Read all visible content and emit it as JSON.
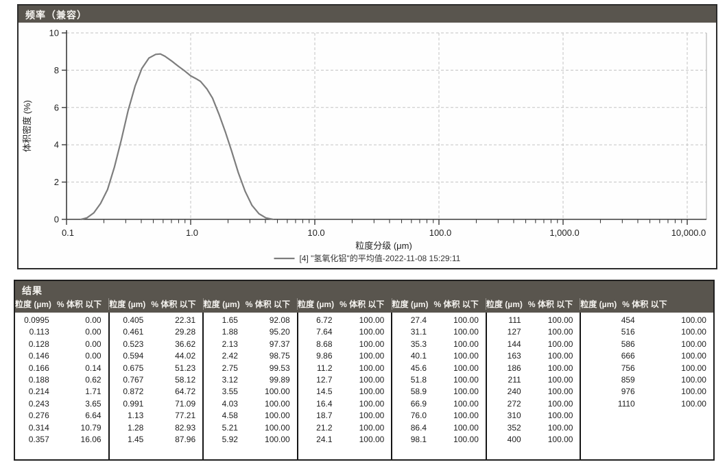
{
  "chart_panel": {
    "title": "频率（兼容）",
    "header_bg": "#59554e",
    "y_axis_label": "体积密度 (%)",
    "x_axis_label": "粒度分级 (μm)",
    "legend_label": "[4] \"氢氧化铝\"的平均值-2022-11-08 15:29:11",
    "curve_color": "#7d7d7d",
    "grid_color": "#c3c3c3",
    "axis_color": "#3a3a3a"
  },
  "chart_data": {
    "type": "line",
    "title": "频率（兼容）",
    "xlabel": "粒度分级 (μm)",
    "ylabel": "体积密度 (%)",
    "x_scale": "log",
    "xlim": [
      0.1,
      10000
    ],
    "ylim": [
      0,
      10
    ],
    "y_ticks": [
      0,
      2,
      4,
      6,
      8,
      10
    ],
    "x_major_ticks": [
      0.1,
      1,
      10,
      100,
      1000,
      10000
    ],
    "x_tick_labels": [
      "0.1",
      "1.0",
      "10.0",
      "100.0",
      "1,000.0",
      "10,000.0"
    ],
    "grid": "dashed",
    "legend_position": "bottom",
    "series": [
      {
        "name": "[4] \"氢氧化铝\"的平均值-2022-11-08 15:29:11",
        "x": [
          0.131,
          0.146,
          0.166,
          0.188,
          0.214,
          0.243,
          0.276,
          0.314,
          0.357,
          0.405,
          0.461,
          0.523,
          0.57,
          0.62,
          0.7,
          0.8,
          0.9,
          1.0,
          1.1,
          1.2,
          1.35,
          1.5,
          1.7,
          1.9,
          2.13,
          2.42,
          2.75,
          3.12,
          3.55,
          4.03,
          4.6
        ],
        "y": [
          0,
          0.08,
          0.35,
          0.85,
          1.6,
          2.8,
          4.25,
          5.85,
          7.15,
          8.1,
          8.65,
          8.85,
          8.87,
          8.75,
          8.5,
          8.2,
          7.95,
          7.7,
          7.55,
          7.4,
          7.0,
          6.5,
          5.6,
          4.7,
          3.7,
          2.5,
          1.5,
          0.75,
          0.3,
          0.08,
          0
        ]
      }
    ]
  },
  "results_table": {
    "title": "结果",
    "size_header": "粒度 (µm)",
    "pct_header": "% 体积 以下",
    "groups": [
      [
        [
          "0.0995",
          "0.00"
        ],
        [
          "0.113",
          "0.00"
        ],
        [
          "0.128",
          "0.00"
        ],
        [
          "0.146",
          "0.00"
        ],
        [
          "0.166",
          "0.14"
        ],
        [
          "0.188",
          "0.62"
        ],
        [
          "0.214",
          "1.71"
        ],
        [
          "0.243",
          "3.65"
        ],
        [
          "0.276",
          "6.64"
        ],
        [
          "0.314",
          "10.79"
        ],
        [
          "0.357",
          "16.06"
        ]
      ],
      [
        [
          "0.405",
          "22.31"
        ],
        [
          "0.461",
          "29.28"
        ],
        [
          "0.523",
          "36.62"
        ],
        [
          "0.594",
          "44.02"
        ],
        [
          "0.675",
          "51.23"
        ],
        [
          "0.767",
          "58.12"
        ],
        [
          "0.872",
          "64.72"
        ],
        [
          "0.991",
          "71.09"
        ],
        [
          "1.13",
          "77.21"
        ],
        [
          "1.28",
          "82.93"
        ],
        [
          "1.45",
          "87.96"
        ]
      ],
      [
        [
          "1.65",
          "92.08"
        ],
        [
          "1.88",
          "95.20"
        ],
        [
          "2.13",
          "97.37"
        ],
        [
          "2.42",
          "98.75"
        ],
        [
          "2.75",
          "99.53"
        ],
        [
          "3.12",
          "99.89"
        ],
        [
          "3.55",
          "100.00"
        ],
        [
          "4.03",
          "100.00"
        ],
        [
          "4.58",
          "100.00"
        ],
        [
          "5.21",
          "100.00"
        ],
        [
          "5.92",
          "100.00"
        ]
      ],
      [
        [
          "6.72",
          "100.00"
        ],
        [
          "7.64",
          "100.00"
        ],
        [
          "8.68",
          "100.00"
        ],
        [
          "9.86",
          "100.00"
        ],
        [
          "11.2",
          "100.00"
        ],
        [
          "12.7",
          "100.00"
        ],
        [
          "14.5",
          "100.00"
        ],
        [
          "16.4",
          "100.00"
        ],
        [
          "18.7",
          "100.00"
        ],
        [
          "21.2",
          "100.00"
        ],
        [
          "24.1",
          "100.00"
        ]
      ],
      [
        [
          "27.4",
          "100.00"
        ],
        [
          "31.1",
          "100.00"
        ],
        [
          "35.3",
          "100.00"
        ],
        [
          "40.1",
          "100.00"
        ],
        [
          "45.6",
          "100.00"
        ],
        [
          "51.8",
          "100.00"
        ],
        [
          "58.9",
          "100.00"
        ],
        [
          "66.9",
          "100.00"
        ],
        [
          "76.0",
          "100.00"
        ],
        [
          "86.4",
          "100.00"
        ],
        [
          "98.1",
          "100.00"
        ]
      ],
      [
        [
          "111",
          "100.00"
        ],
        [
          "127",
          "100.00"
        ],
        [
          "144",
          "100.00"
        ],
        [
          "163",
          "100.00"
        ],
        [
          "186",
          "100.00"
        ],
        [
          "211",
          "100.00"
        ],
        [
          "240",
          "100.00"
        ],
        [
          "272",
          "100.00"
        ],
        [
          "310",
          "100.00"
        ],
        [
          "352",
          "100.00"
        ],
        [
          "400",
          "100.00"
        ]
      ],
      [
        [
          "454",
          "100.00"
        ],
        [
          "516",
          "100.00"
        ],
        [
          "586",
          "100.00"
        ],
        [
          "666",
          "100.00"
        ],
        [
          "756",
          "100.00"
        ],
        [
          "859",
          "100.00"
        ],
        [
          "976",
          "100.00"
        ],
        [
          "1110",
          "100.00"
        ]
      ]
    ]
  }
}
